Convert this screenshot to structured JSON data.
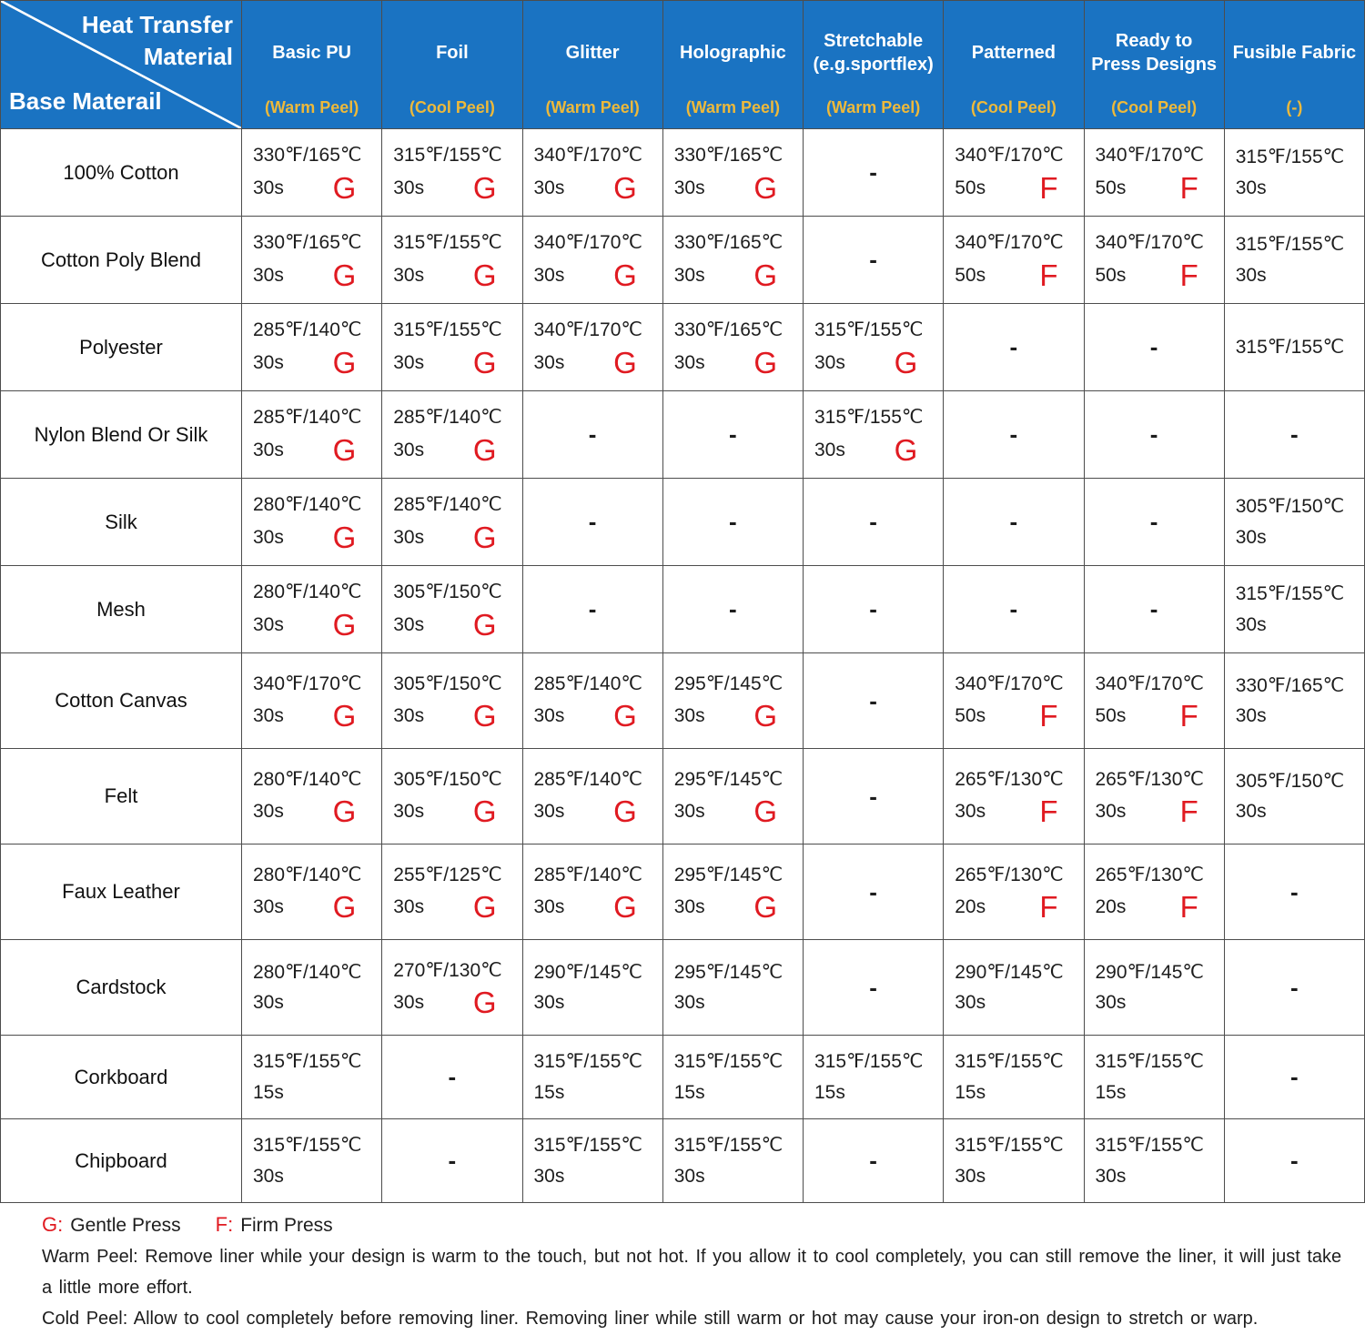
{
  "chart_data": {
    "type": "table",
    "corner": {
      "top_line1": "Heat Transfer",
      "top_line2": "Material",
      "bottom": "Base Materail"
    },
    "columns": [
      {
        "name": "Basic PU",
        "peel": "(Warm Peel)"
      },
      {
        "name": "Foil",
        "peel": "(Cool Peel)"
      },
      {
        "name": "Glitter",
        "peel": "(Warm Peel)"
      },
      {
        "name": "Holographic",
        "peel": "(Warm Peel)"
      },
      {
        "name": "Stretchable (e.g.sportflex)",
        "peel": "(Warm Peel)"
      },
      {
        "name": "Patterned",
        "peel": "(Cool Peel)"
      },
      {
        "name": "Ready to Press Designs",
        "peel": "(Cool Peel)"
      },
      {
        "name": "Fusible Fabric",
        "peel": "(-)"
      }
    ],
    "rows": [
      {
        "material": "100% Cotton",
        "cells": [
          {
            "temp": "330℉/165℃",
            "time": "30s",
            "press": "G"
          },
          {
            "temp": "315℉/155℃",
            "time": "30s",
            "press": "G"
          },
          {
            "temp": "340℉/170℃",
            "time": "30s",
            "press": "G"
          },
          {
            "temp": "330℉/165℃",
            "time": "30s",
            "press": "G"
          },
          {
            "dash": "-"
          },
          {
            "temp": "340℉/170℃",
            "time": "50s",
            "press": "F"
          },
          {
            "temp": "340℉/170℃",
            "time": "50s",
            "press": "F"
          },
          {
            "temp": "315℉/155℃",
            "time": "30s"
          }
        ]
      },
      {
        "material": "Cotton Poly Blend",
        "cells": [
          {
            "temp": "330℉/165℃",
            "time": "30s",
            "press": "G"
          },
          {
            "temp": "315℉/155℃",
            "time": "30s",
            "press": "G"
          },
          {
            "temp": "340℉/170℃",
            "time": "30s",
            "press": "G"
          },
          {
            "temp": "330℉/165℃",
            "time": "30s",
            "press": "G"
          },
          {
            "dash": "-"
          },
          {
            "temp": "340℉/170℃",
            "time": "50s",
            "press": "F"
          },
          {
            "temp": "340℉/170℃",
            "time": "50s",
            "press": "F"
          },
          {
            "temp": "315℉/155℃",
            "time": "30s"
          }
        ]
      },
      {
        "material": "Polyester",
        "cells": [
          {
            "temp": "285℉/140℃",
            "time": "30s",
            "press": "G"
          },
          {
            "temp": "315℉/155℃",
            "time": "30s",
            "press": "G"
          },
          {
            "temp": "340℉/170℃",
            "time": "30s",
            "press": "G"
          },
          {
            "temp": "330℉/165℃",
            "time": "30s",
            "press": "G"
          },
          {
            "temp": "315℉/155℃",
            "time": "30s",
            "press": "G"
          },
          {
            "dash": "-"
          },
          {
            "dash": "-"
          },
          {
            "temp": "315℉/155℃"
          }
        ]
      },
      {
        "material": "Nylon Blend Or Silk",
        "cells": [
          {
            "temp": "285℉/140℃",
            "time": "30s",
            "press": "G"
          },
          {
            "temp": "285℉/140℃",
            "time": "30s",
            "press": "G"
          },
          {
            "dash": "-"
          },
          {
            "dash": "-"
          },
          {
            "temp": "315℉/155℃",
            "time": "30s",
            "press": "G"
          },
          {
            "dash": "-"
          },
          {
            "dash": "-"
          },
          {
            "dash": "-"
          }
        ]
      },
      {
        "material": "Silk",
        "cells": [
          {
            "temp": "280℉/140℃",
            "time": "30s",
            "press": "G"
          },
          {
            "temp": "285℉/140℃",
            "time": "30s",
            "press": "G"
          },
          {
            "dash": "-"
          },
          {
            "dash": "-"
          },
          {
            "dash": "-"
          },
          {
            "dash": "-"
          },
          {
            "dash": "-"
          },
          {
            "temp": "305℉/150℃",
            "time": "30s"
          }
        ]
      },
      {
        "material": "Mesh",
        "cells": [
          {
            "temp": "280℉/140℃",
            "time": "30s",
            "press": "G"
          },
          {
            "temp": "305℉/150℃",
            "time": "30s",
            "press": "G"
          },
          {
            "dash": "-"
          },
          {
            "dash": "-"
          },
          {
            "dash": "-"
          },
          {
            "dash": "-"
          },
          {
            "dash": "-"
          },
          {
            "temp": "315℉/155℃",
            "time": "30s"
          }
        ]
      },
      {
        "material": "Cotton Canvas",
        "cells": [
          {
            "temp": "340℉/170℃",
            "time": "30s",
            "press": "G"
          },
          {
            "temp": "305℉/150℃",
            "time": "30s",
            "press": "G"
          },
          {
            "temp": "285℉/140℃",
            "time": "30s",
            "press": "G"
          },
          {
            "temp": "295℉/145℃",
            "time": "30s",
            "press": "G"
          },
          {
            "dash": "-"
          },
          {
            "temp": "340℉/170℃",
            "time": "50s",
            "press": "F"
          },
          {
            "temp": "340℉/170℃",
            "time": "50s",
            "press": "F"
          },
          {
            "temp": "330℉/165℃",
            "time": "30s"
          }
        ]
      },
      {
        "material": "Felt",
        "cells": [
          {
            "temp": "280℉/140℃",
            "time": "30s",
            "press": "G"
          },
          {
            "temp": "305℉/150℃",
            "time": "30s",
            "press": "G"
          },
          {
            "temp": "285℉/140℃",
            "time": "30s",
            "press": "G"
          },
          {
            "temp": "295℉/145℃",
            "time": "30s",
            "press": "G"
          },
          {
            "dash": "-"
          },
          {
            "temp": "265℉/130℃",
            "time": "30s",
            "press": "F"
          },
          {
            "temp": "265℉/130℃",
            "time": "30s",
            "press": "F"
          },
          {
            "temp": "305℉/150℃",
            "time": "30s"
          }
        ]
      },
      {
        "material": "Faux Leather",
        "cells": [
          {
            "temp": "280℉/140℃",
            "time": "30s",
            "press": "G"
          },
          {
            "temp": "255℉/125℃",
            "time": "30s",
            "press": "G"
          },
          {
            "temp": "285℉/140℃",
            "time": "30s",
            "press": "G"
          },
          {
            "temp": "295℉/145℃",
            "time": "30s",
            "press": "G"
          },
          {
            "dash": "-"
          },
          {
            "temp": "265℉/130℃",
            "time": "20s",
            "press": "F"
          },
          {
            "temp": "265℉/130℃",
            "time": "20s",
            "press": "F"
          },
          {
            "dash": "-"
          }
        ]
      },
      {
        "material": "Cardstock",
        "cells": [
          {
            "temp": "280℉/140℃",
            "time": "30s"
          },
          {
            "temp": "270℉/130℃",
            "time": "30s",
            "press": "G"
          },
          {
            "temp": "290℉/145℃",
            "time": "30s"
          },
          {
            "temp": "295℉/145℃",
            "time": "30s"
          },
          {
            "dash": "-"
          },
          {
            "temp": "290℉/145℃",
            "time": "30s"
          },
          {
            "temp": "290℉/145℃",
            "time": "30s"
          },
          {
            "dash": "-"
          }
        ]
      },
      {
        "material": "Corkboard",
        "cells": [
          {
            "temp": "315℉/155℃",
            "time": "15s"
          },
          {
            "dash": "-"
          },
          {
            "temp": "315℉/155℃",
            "time": "15s"
          },
          {
            "temp": "315℉/155℃",
            "time": "15s"
          },
          {
            "temp": "315℉/155℃",
            "time": "15s"
          },
          {
            "temp": "315℉/155℃",
            "time": "15s"
          },
          {
            "temp": "315℉/155℃",
            "time": "15s"
          },
          {
            "dash": "-"
          }
        ]
      },
      {
        "material": "Chipboard",
        "cells": [
          {
            "temp": "315℉/155℃",
            "time": "30s"
          },
          {
            "dash": "-"
          },
          {
            "temp": "315℉/155℃",
            "time": "30s"
          },
          {
            "temp": "315℉/155℃",
            "time": "30s"
          },
          {
            "dash": "-"
          },
          {
            "temp": "315℉/155℃",
            "time": "30s"
          },
          {
            "temp": "315℉/155℃",
            "time": "30s"
          },
          {
            "dash": "-"
          }
        ]
      }
    ],
    "legend": {
      "g_key": "G:",
      "g_label": "Gentle Press",
      "f_key": "F:",
      "f_label": "Firm Press"
    },
    "notes": [
      "Warm Peel: Remove liner while your design is warm to the touch, but not hot. If you allow it to cool completely, you can still remove the liner, it will just take a little more effort.",
      "Cold Peel: Allow to cool completely before removing liner. Removing liner while still warm or hot may cause your iron-on design to stretch or warp."
    ],
    "colors": {
      "header_blue": "#1a73c2",
      "peel_yellow": "#edb93b",
      "press_red": "#e01a21"
    }
  }
}
